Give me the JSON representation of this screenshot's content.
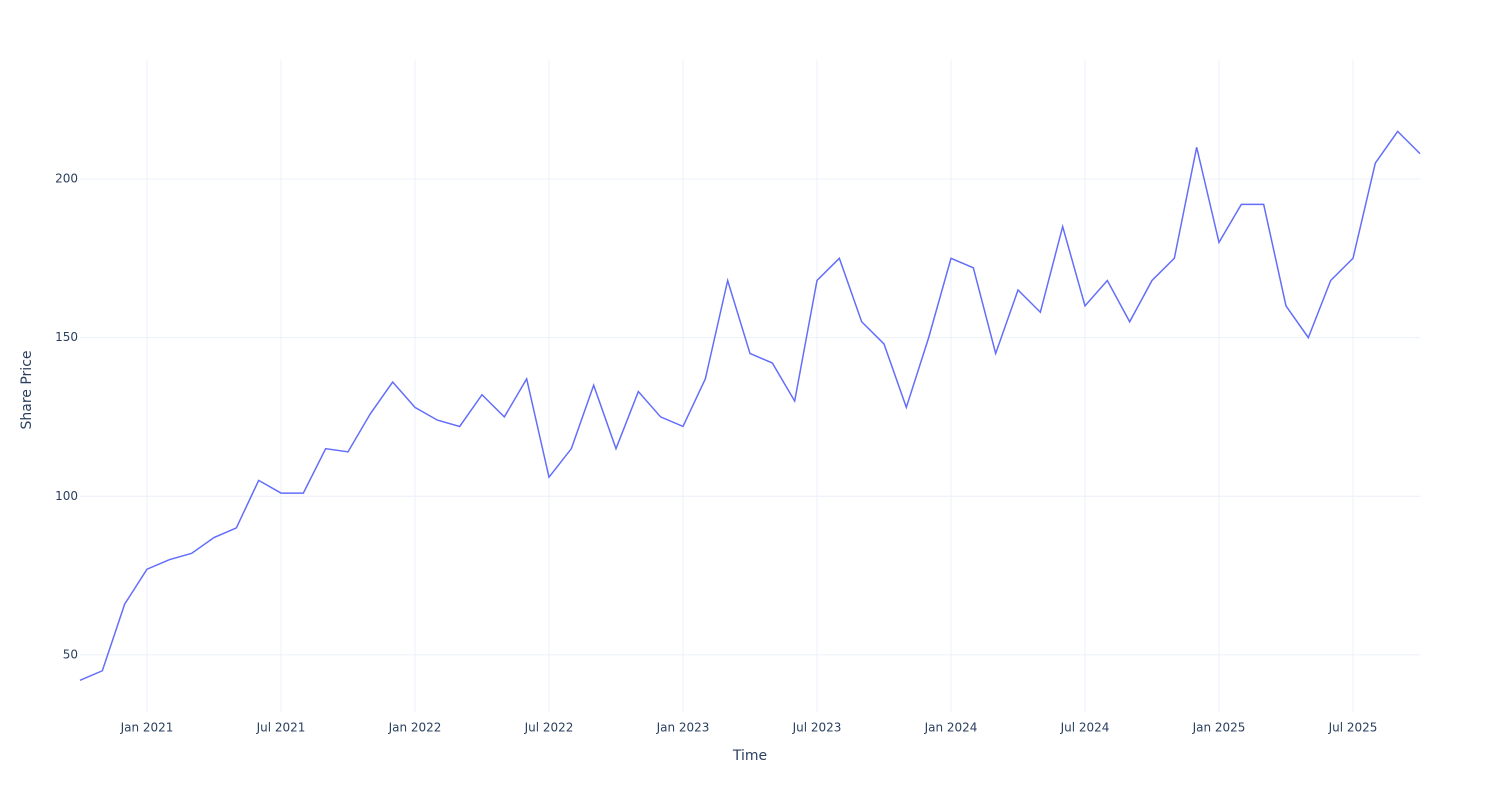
{
  "chart_data": {
    "type": "line",
    "x_label": "Time",
    "y_label": "Share Price",
    "x": [
      "2020-10",
      "2020-11",
      "2020-12",
      "2021-01",
      "2021-02",
      "2021-03",
      "2021-04",
      "2021-05",
      "2021-06",
      "2021-07",
      "2021-08",
      "2021-09",
      "2021-10",
      "2021-11",
      "2021-12",
      "2022-01",
      "2022-02",
      "2022-03",
      "2022-04",
      "2022-05",
      "2022-06",
      "2022-07",
      "2022-08",
      "2022-09",
      "2022-10",
      "2022-11",
      "2022-12",
      "2023-01",
      "2023-02",
      "2023-03",
      "2023-04",
      "2023-05",
      "2023-06",
      "2023-07",
      "2023-08",
      "2023-09",
      "2023-10",
      "2023-11",
      "2023-12",
      "2024-01",
      "2024-02",
      "2024-03",
      "2024-04",
      "2024-05",
      "2024-06",
      "2024-07",
      "2024-08",
      "2024-09",
      "2024-10",
      "2024-11",
      "2024-12",
      "2025-01",
      "2025-02",
      "2025-03",
      "2025-04",
      "2025-05",
      "2025-06",
      "2025-07",
      "2025-08",
      "2025-09",
      "2025-10"
    ],
    "series": [
      {
        "color": "#636efa",
        "values": [
          42,
          45,
          66,
          77,
          80,
          82,
          87,
          90,
          105,
          101,
          101,
          115,
          114,
          126,
          136,
          128,
          124,
          122,
          132,
          125,
          137,
          106,
          115,
          135,
          115,
          133,
          125,
          122,
          137,
          168,
          145,
          142,
          130,
          168,
          175,
          155,
          148,
          128,
          150,
          175,
          172,
          145,
          165,
          158,
          185,
          160,
          168,
          155,
          168,
          175,
          210,
          180,
          192,
          192,
          160,
          150,
          168,
          175,
          205,
          215,
          208
        ]
      }
    ],
    "xlim": [
      "2020-10",
      "2025-10"
    ],
    "xticks": [
      {
        "value": "2021-01",
        "label": "Jan 2021"
      },
      {
        "value": "2021-07",
        "label": "Jul 2021"
      },
      {
        "value": "2022-01",
        "label": "Jan 2022"
      },
      {
        "value": "2022-07",
        "label": "Jul 2022"
      },
      {
        "value": "2023-01",
        "label": "Jan 2023"
      },
      {
        "value": "2023-07",
        "label": "Jul 2023"
      },
      {
        "value": "2024-01",
        "label": "Jan 2024"
      },
      {
        "value": "2024-07",
        "label": "Jul 2024"
      },
      {
        "value": "2025-01",
        "label": "Jan 2025"
      },
      {
        "value": "2025-07",
        "label": "Jul 2025"
      }
    ],
    "ylim": [
      32,
      237.5
    ],
    "yticks": [
      50,
      100,
      150,
      200
    ],
    "grid": true
  }
}
